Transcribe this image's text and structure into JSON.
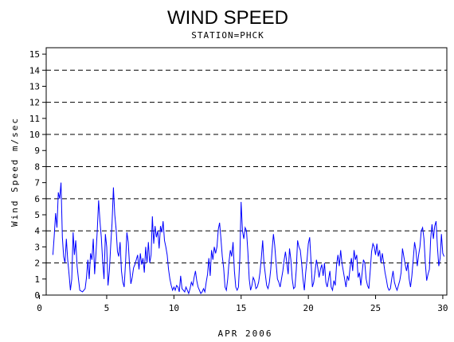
{
  "chart_data": {
    "type": "line",
    "title": "WIND SPEED",
    "subtitle": "STATION=PHCK",
    "xlabel": "APR 2006",
    "ylabel": "Wind Speed m/sec",
    "xlim": [
      0.5,
      30.3
    ],
    "ylim": [
      0,
      15.4
    ],
    "x_ticks": [
      0,
      5,
      10,
      15,
      20,
      25,
      30
    ],
    "y_ticks": [
      0,
      1,
      2,
      3,
      4,
      5,
      6,
      7,
      8,
      9,
      10,
      11,
      12,
      13,
      14,
      15
    ],
    "gridlines_y": [
      2,
      4,
      6,
      8,
      10,
      12,
      14
    ],
    "series_color": "#0000ff",
    "grid_color": "#000000",
    "series": [
      {
        "name": "",
        "points": [
          [
            1.0,
            2.5
          ],
          [
            1.1,
            3.7
          ],
          [
            1.2,
            5.1
          ],
          [
            1.3,
            4.2
          ],
          [
            1.4,
            6.4
          ],
          [
            1.5,
            6.0
          ],
          [
            1.6,
            7.0
          ],
          [
            1.7,
            3.6
          ],
          [
            1.8,
            2.4
          ],
          [
            1.9,
            2.0
          ],
          [
            2.0,
            3.5
          ],
          [
            2.1,
            2.2
          ],
          [
            2.2,
            1.3
          ],
          [
            2.3,
            0.3
          ],
          [
            2.4,
            1.0
          ],
          [
            2.5,
            3.9
          ],
          [
            2.6,
            2.5
          ],
          [
            2.7,
            3.4
          ],
          [
            2.8,
            1.8
          ],
          [
            2.9,
            1.0
          ],
          [
            3.0,
            0.3
          ],
          [
            3.2,
            0.2
          ],
          [
            3.4,
            0.4
          ],
          [
            3.5,
            1.1
          ],
          [
            3.6,
            2.2
          ],
          [
            3.7,
            1.0
          ],
          [
            3.8,
            2.6
          ],
          [
            3.9,
            2.2
          ],
          [
            4.0,
            3.5
          ],
          [
            4.1,
            1.3
          ],
          [
            4.2,
            2.6
          ],
          [
            4.3,
            4.0
          ],
          [
            4.4,
            5.9
          ],
          [
            4.5,
            4.6
          ],
          [
            4.6,
            3.6
          ],
          [
            4.7,
            2.1
          ],
          [
            4.8,
            1.0
          ],
          [
            4.9,
            3.8
          ],
          [
            5.0,
            3.0
          ],
          [
            5.1,
            0.6
          ],
          [
            5.2,
            1.5
          ],
          [
            5.3,
            3.1
          ],
          [
            5.4,
            4.5
          ],
          [
            5.5,
            6.7
          ],
          [
            5.6,
            5.0
          ],
          [
            5.7,
            4.1
          ],
          [
            5.8,
            2.7
          ],
          [
            5.9,
            2.4
          ],
          [
            6.0,
            3.3
          ],
          [
            6.1,
            1.5
          ],
          [
            6.2,
            0.8
          ],
          [
            6.3,
            0.5
          ],
          [
            6.4,
            2.0
          ],
          [
            6.5,
            3.9
          ],
          [
            6.6,
            3.3
          ],
          [
            6.7,
            1.8
          ],
          [
            6.8,
            0.7
          ],
          [
            6.9,
            1.1
          ],
          [
            7.0,
            1.7
          ],
          [
            7.1,
            1.9
          ],
          [
            7.2,
            2.2
          ],
          [
            7.3,
            2.5
          ],
          [
            7.4,
            1.6
          ],
          [
            7.5,
            2.6
          ],
          [
            7.6,
            1.9
          ],
          [
            7.7,
            2.3
          ],
          [
            7.8,
            1.4
          ],
          [
            7.9,
            3.0
          ],
          [
            8.0,
            2.0
          ],
          [
            8.1,
            3.3
          ],
          [
            8.2,
            2.0
          ],
          [
            8.3,
            2.5
          ],
          [
            8.4,
            4.9
          ],
          [
            8.5,
            3.2
          ],
          [
            8.6,
            4.3
          ],
          [
            8.7,
            3.6
          ],
          [
            8.8,
            4.0
          ],
          [
            8.9,
            2.9
          ],
          [
            9.0,
            4.3
          ],
          [
            9.1,
            3.9
          ],
          [
            9.2,
            4.6
          ],
          [
            9.3,
            3.4
          ],
          [
            9.4,
            3.0
          ],
          [
            9.5,
            2.5
          ],
          [
            9.6,
            1.6
          ],
          [
            9.7,
            1.0
          ],
          [
            9.8,
            0.6
          ],
          [
            9.9,
            0.3
          ],
          [
            10.0,
            0.5
          ],
          [
            10.1,
            0.3
          ],
          [
            10.2,
            0.6
          ],
          [
            10.3,
            0.5
          ],
          [
            10.4,
            0.2
          ],
          [
            10.5,
            1.2
          ],
          [
            10.6,
            0.4
          ],
          [
            10.7,
            0.3
          ],
          [
            10.8,
            0.2
          ],
          [
            10.9,
            0.5
          ],
          [
            11.0,
            0.3
          ],
          [
            11.1,
            0.1
          ],
          [
            11.2,
            0.4
          ],
          [
            11.3,
            0.8
          ],
          [
            11.4,
            0.6
          ],
          [
            11.5,
            1.1
          ],
          [
            11.6,
            1.5
          ],
          [
            11.7,
            0.9
          ],
          [
            11.8,
            0.5
          ],
          [
            11.9,
            0.3
          ],
          [
            12.0,
            0.1
          ],
          [
            12.1,
            0.2
          ],
          [
            12.2,
            0.4
          ],
          [
            12.3,
            0.2
          ],
          [
            12.4,
            0.8
          ],
          [
            12.5,
            1.3
          ],
          [
            12.6,
            2.3
          ],
          [
            12.7,
            1.2
          ],
          [
            12.8,
            2.8
          ],
          [
            12.9,
            2.2
          ],
          [
            13.0,
            3.0
          ],
          [
            13.1,
            2.6
          ],
          [
            13.2,
            3.0
          ],
          [
            13.3,
            4.1
          ],
          [
            13.4,
            4.5
          ],
          [
            13.5,
            3.5
          ],
          [
            13.6,
            2.4
          ],
          [
            13.7,
            1.7
          ],
          [
            13.8,
            0.5
          ],
          [
            13.9,
            0.3
          ],
          [
            14.0,
            1.0
          ],
          [
            14.1,
            2.1
          ],
          [
            14.2,
            2.8
          ],
          [
            14.3,
            2.4
          ],
          [
            14.4,
            3.3
          ],
          [
            14.5,
            1.5
          ],
          [
            14.6,
            0.5
          ],
          [
            14.7,
            0.3
          ],
          [
            14.8,
            0.5
          ],
          [
            14.9,
            2.3
          ],
          [
            15.0,
            5.8
          ],
          [
            15.1,
            4.0
          ],
          [
            15.2,
            3.5
          ],
          [
            15.3,
            4.2
          ],
          [
            15.4,
            4.0
          ],
          [
            15.5,
            2.7
          ],
          [
            15.6,
            1.0
          ],
          [
            15.7,
            0.3
          ],
          [
            15.8,
            0.6
          ],
          [
            15.9,
            1.1
          ],
          [
            16.0,
            0.9
          ],
          [
            16.1,
            0.4
          ],
          [
            16.2,
            0.5
          ],
          [
            16.3,
            0.8
          ],
          [
            16.4,
            1.4
          ],
          [
            16.5,
            2.3
          ],
          [
            16.6,
            3.4
          ],
          [
            16.7,
            2.0
          ],
          [
            16.8,
            1.3
          ],
          [
            16.9,
            0.6
          ],
          [
            17.0,
            0.4
          ],
          [
            17.1,
            0.8
          ],
          [
            17.2,
            1.6
          ],
          [
            17.3,
            2.8
          ],
          [
            17.4,
            3.8
          ],
          [
            17.5,
            3.1
          ],
          [
            17.6,
            2.0
          ],
          [
            17.7,
            1.0
          ],
          [
            17.8,
            0.8
          ],
          [
            17.9,
            0.5
          ],
          [
            18.0,
            1.0
          ],
          [
            18.1,
            1.5
          ],
          [
            18.2,
            2.2
          ],
          [
            18.3,
            2.7
          ],
          [
            18.4,
            2.0
          ],
          [
            18.5,
            1.3
          ],
          [
            18.6,
            2.9
          ],
          [
            18.7,
            2.2
          ],
          [
            18.8,
            1.0
          ],
          [
            18.9,
            0.4
          ],
          [
            19.0,
            0.5
          ],
          [
            19.1,
            1.6
          ],
          [
            19.2,
            3.4
          ],
          [
            19.3,
            3.0
          ],
          [
            19.4,
            2.8
          ],
          [
            19.5,
            2.0
          ],
          [
            19.6,
            1.0
          ],
          [
            19.7,
            0.3
          ],
          [
            19.8,
            1.4
          ],
          [
            19.9,
            2.2
          ],
          [
            20.0,
            3.2
          ],
          [
            20.1,
            3.6
          ],
          [
            20.2,
            2.1
          ],
          [
            20.3,
            0.5
          ],
          [
            20.4,
            0.8
          ],
          [
            20.5,
            1.5
          ],
          [
            20.6,
            2.2
          ],
          [
            20.7,
            1.7
          ],
          [
            20.8,
            1.1
          ],
          [
            20.9,
            1.6
          ],
          [
            21.0,
            1.9
          ],
          [
            21.1,
            1.2
          ],
          [
            21.2,
            2.0
          ],
          [
            21.3,
            0.8
          ],
          [
            21.4,
            0.5
          ],
          [
            21.5,
            1.0
          ],
          [
            21.6,
            1.5
          ],
          [
            21.7,
            0.5
          ],
          [
            21.8,
            0.3
          ],
          [
            21.9,
            0.9
          ],
          [
            22.0,
            0.6
          ],
          [
            22.1,
            1.9
          ],
          [
            22.2,
            2.5
          ],
          [
            22.3,
            1.8
          ],
          [
            22.4,
            2.8
          ],
          [
            22.5,
            2.0
          ],
          [
            22.6,
            1.5
          ],
          [
            22.7,
            1.0
          ],
          [
            22.8,
            0.5
          ],
          [
            22.9,
            1.2
          ],
          [
            23.0,
            0.9
          ],
          [
            23.1,
            1.7
          ],
          [
            23.2,
            2.3
          ],
          [
            23.3,
            1.5
          ],
          [
            23.4,
            2.8
          ],
          [
            23.5,
            2.2
          ],
          [
            23.6,
            2.5
          ],
          [
            23.7,
            1.1
          ],
          [
            23.8,
            1.4
          ],
          [
            23.9,
            0.6
          ],
          [
            24.0,
            1.4
          ],
          [
            24.1,
            2.2
          ],
          [
            24.2,
            2.0
          ],
          [
            24.3,
            1.0
          ],
          [
            24.4,
            0.6
          ],
          [
            24.5,
            0.4
          ],
          [
            24.6,
            1.5
          ],
          [
            24.7,
            2.7
          ],
          [
            24.8,
            3.2
          ],
          [
            24.9,
            3.0
          ],
          [
            25.0,
            2.5
          ],
          [
            25.1,
            3.2
          ],
          [
            25.2,
            2.4
          ],
          [
            25.3,
            2.8
          ],
          [
            25.4,
            2.0
          ],
          [
            25.5,
            2.6
          ],
          [
            25.6,
            2.0
          ],
          [
            25.7,
            1.4
          ],
          [
            25.8,
            1.0
          ],
          [
            25.9,
            0.5
          ],
          [
            26.0,
            0.3
          ],
          [
            26.1,
            0.4
          ],
          [
            26.2,
            1.0
          ],
          [
            26.3,
            1.5
          ],
          [
            26.4,
            0.8
          ],
          [
            26.5,
            0.5
          ],
          [
            26.6,
            0.3
          ],
          [
            26.7,
            0.6
          ],
          [
            26.8,
            0.9
          ],
          [
            26.9,
            1.4
          ],
          [
            27.0,
            2.9
          ],
          [
            27.1,
            2.4
          ],
          [
            27.2,
            1.9
          ],
          [
            27.3,
            1.5
          ],
          [
            27.4,
            2.0
          ],
          [
            27.5,
            1.0
          ],
          [
            27.6,
            0.5
          ],
          [
            27.7,
            1.2
          ],
          [
            27.8,
            2.2
          ],
          [
            27.9,
            3.3
          ],
          [
            28.0,
            2.8
          ],
          [
            28.1,
            1.8
          ],
          [
            28.2,
            2.5
          ],
          [
            28.3,
            3.0
          ],
          [
            28.4,
            4.0
          ],
          [
            28.5,
            4.2
          ],
          [
            28.6,
            3.5
          ],
          [
            28.7,
            2.0
          ],
          [
            28.8,
            0.9
          ],
          [
            28.9,
            1.3
          ],
          [
            29.0,
            1.6
          ],
          [
            29.1,
            3.5
          ],
          [
            29.2,
            4.4
          ],
          [
            29.3,
            3.5
          ],
          [
            29.4,
            4.3
          ],
          [
            29.5,
            4.6
          ],
          [
            29.6,
            3.0
          ],
          [
            29.7,
            1.8
          ],
          [
            29.8,
            2.3
          ],
          [
            29.9,
            3.8
          ],
          [
            30.0,
            2.6
          ],
          [
            30.1,
            2.4
          ]
        ]
      }
    ]
  }
}
